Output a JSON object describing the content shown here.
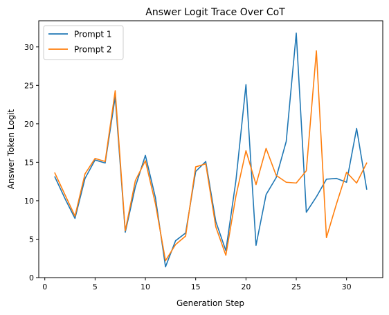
{
  "chart_data": {
    "type": "line",
    "title": "Answer Logit Trace Over CoT",
    "xlabel": "Generation Step",
    "ylabel": "Answer Token Logit",
    "xlim": [
      -0.6,
      33.6
    ],
    "ylim": [
      0,
      33.4
    ],
    "xticks": [
      0,
      5,
      10,
      15,
      20,
      25,
      30
    ],
    "yticks": [
      0,
      5,
      10,
      15,
      20,
      25,
      30
    ],
    "grid": false,
    "legend_position": "upper-left",
    "x": [
      1,
      2,
      3,
      4,
      5,
      6,
      7,
      8,
      9,
      10,
      11,
      12,
      13,
      14,
      15,
      16,
      17,
      18,
      19,
      20,
      21,
      22,
      23,
      24,
      25,
      26,
      27,
      28,
      29,
      30,
      31,
      32
    ],
    "series": [
      {
        "name": "Prompt 1",
        "color": "#1f77b4",
        "values": [
          13.1,
          10.3,
          7.7,
          12.9,
          15.3,
          14.9,
          23.5,
          5.9,
          11.8,
          15.9,
          10.4,
          1.4,
          4.8,
          5.8,
          13.8,
          15.1,
          7.3,
          3.5,
          12.6,
          25.1,
          4.2,
          10.8,
          13.0,
          17.7,
          31.8,
          8.5,
          10.5,
          12.8,
          12.9,
          12.4,
          19.4,
          11.5
        ]
      },
      {
        "name": "Prompt 2",
        "color": "#ff7f0e",
        "values": [
          13.6,
          10.8,
          8.0,
          13.5,
          15.5,
          15.1,
          24.3,
          6.1,
          12.6,
          15.2,
          9.6,
          2.2,
          4.3,
          5.4,
          14.4,
          14.8,
          6.6,
          2.9,
          10.6,
          16.5,
          12.1,
          16.8,
          13.3,
          12.4,
          12.3,
          13.9,
          29.5,
          5.2,
          9.6,
          13.7,
          12.3,
          14.9
        ]
      }
    ]
  }
}
